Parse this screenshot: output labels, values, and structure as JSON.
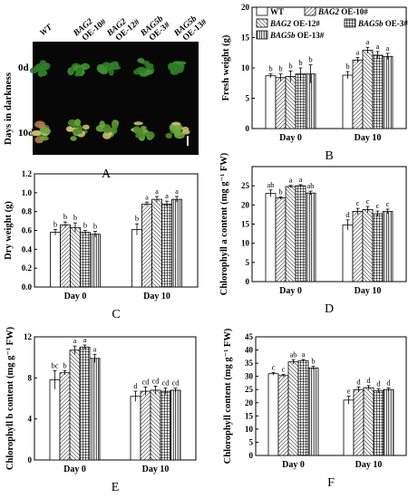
{
  "photo_panel": {
    "label": "A",
    "row_axis_label": "Days in darkness",
    "row_labels": [
      "0d",
      "10d"
    ],
    "columns": [
      {
        "gene": "WT",
        "line": ""
      },
      {
        "gene": "BAG2",
        "line": "OE-10#"
      },
      {
        "gene": "BAG2",
        "line": "OE-12#"
      },
      {
        "gene": "BAG5b",
        "line": "OE-3#"
      },
      {
        "gene": "BAG5b",
        "line": "OE-13#"
      }
    ]
  },
  "legend": {
    "entries": [
      {
        "gene": "WT",
        "line": ""
      },
      {
        "gene": "BAG2",
        "line": " OE-10#"
      },
      {
        "gene": "BAG2",
        "line": " OE-12#"
      },
      {
        "gene": "BAG5b",
        "line": " OE-3#"
      },
      {
        "gene": "BAG5b",
        "line": " OE-13#"
      }
    ]
  },
  "chart_data": [
    {
      "panel": "B",
      "type": "bar",
      "ylabel": "Fresh weight (g)",
      "ylim": [
        0,
        20
      ],
      "yticks": [
        0,
        5,
        10,
        15,
        20
      ],
      "categories": [
        "Day 0",
        "Day 10"
      ],
      "series": [
        {
          "name": "WT",
          "values": [
            8.7,
            8.8
          ],
          "errors": [
            0.3,
            0.6
          ],
          "letters": [
            "b",
            "b"
          ]
        },
        {
          "name": "BAG2 OE-10#",
          "values": [
            8.4,
            11.3
          ],
          "errors": [
            0.6,
            0.4
          ],
          "letters": [
            "b",
            "a"
          ]
        },
        {
          "name": "BAG2 OE-12#",
          "values": [
            8.6,
            12.9
          ],
          "errors": [
            0.9,
            0.5
          ],
          "letters": [
            "b",
            "a"
          ]
        },
        {
          "name": "BAG5b OE-3#",
          "values": [
            9.0,
            12.1
          ],
          "errors": [
            1.0,
            0.6
          ],
          "letters": [
            "b",
            "a"
          ]
        },
        {
          "name": "BAG5b OE-13#",
          "values": [
            9.0,
            11.9
          ],
          "errors": [
            1.5,
            0.5
          ],
          "letters": [
            "b",
            "a"
          ]
        }
      ]
    },
    {
      "panel": "C",
      "type": "bar",
      "ylabel": "Dry weight (g)",
      "ylim": [
        0,
        1.2
      ],
      "yticks": [
        "0.0",
        "0.2",
        "0.4",
        "0.6",
        "0.8",
        "1.0",
        "1.2"
      ],
      "categories": [
        "Day 0",
        "Day 10"
      ],
      "series": [
        {
          "name": "WT",
          "values": [
            0.58,
            0.61
          ],
          "errors": [
            0.03,
            0.06
          ],
          "letters": [
            "b",
            "b"
          ]
        },
        {
          "name": "BAG2 OE-10#",
          "values": [
            0.66,
            0.88
          ],
          "errors": [
            0.03,
            0.02
          ],
          "letters": [
            "b",
            "a"
          ]
        },
        {
          "name": "BAG2 OE-12#",
          "values": [
            0.63,
            0.93
          ],
          "errors": [
            0.05,
            0.03
          ],
          "letters": [
            "b",
            "a"
          ]
        },
        {
          "name": "BAG5b OE-3#",
          "values": [
            0.58,
            0.88
          ],
          "errors": [
            0.02,
            0.03
          ],
          "letters": [
            "b",
            "a"
          ]
        },
        {
          "name": "BAG5b OE-13#",
          "values": [
            0.56,
            0.93
          ],
          "errors": [
            0.03,
            0.03
          ],
          "letters": [
            "b",
            "a"
          ]
        }
      ]
    },
    {
      "panel": "D",
      "type": "bar",
      "ylabel": "Chlorophyll a content (mg g⁻¹ FW)",
      "ylim": [
        0,
        30
      ],
      "yticks": [
        0,
        5,
        10,
        15,
        20,
        25
      ],
      "categories": [
        "Day 0",
        "Day 10"
      ],
      "series": [
        {
          "name": "WT",
          "values": [
            23.0,
            14.8
          ],
          "errors": [
            0.9,
            1.3
          ],
          "letters": [
            "ab",
            "d"
          ]
        },
        {
          "name": "BAG2 OE-10#",
          "values": [
            21.8,
            18.3
          ],
          "errors": [
            0.3,
            0.8
          ],
          "letters": [
            "b",
            "c"
          ]
        },
        {
          "name": "BAG2 OE-12#",
          "values": [
            24.8,
            18.8
          ],
          "errors": [
            0.3,
            0.8
          ],
          "letters": [
            "a",
            "c"
          ]
        },
        {
          "name": "BAG5b OE-3#",
          "values": [
            25.0,
            17.7
          ],
          "errors": [
            0.3,
            0.7
          ],
          "letters": [
            "a",
            "c"
          ]
        },
        {
          "name": "BAG5b OE-13#",
          "values": [
            23.1,
            18.3
          ],
          "errors": [
            0.5,
            0.6
          ],
          "letters": [
            "ab",
            "c"
          ]
        }
      ]
    },
    {
      "panel": "E",
      "type": "bar",
      "ylabel": "Chlorophyll b content (mg g⁻¹ FW)",
      "ylim": [
        0,
        12
      ],
      "yticks": [
        0,
        4,
        8,
        12
      ],
      "categories": [
        "Day 0",
        "Day 10"
      ],
      "series": [
        {
          "name": "WT",
          "values": [
            7.8,
            6.2
          ],
          "errors": [
            0.9,
            0.5
          ],
          "letters": [
            "bc",
            "d"
          ]
        },
        {
          "name": "BAG2 OE-10#",
          "values": [
            8.5,
            6.7
          ],
          "errors": [
            0.2,
            0.4
          ],
          "letters": [
            "b",
            "cd"
          ]
        },
        {
          "name": "BAG2 OE-12#",
          "values": [
            10.7,
            6.8
          ],
          "errors": [
            0.4,
            0.4
          ],
          "letters": [
            "a",
            "cd"
          ]
        },
        {
          "name": "BAG5b OE-3#",
          "values": [
            11.0,
            6.7
          ],
          "errors": [
            0.2,
            0.3
          ],
          "letters": [
            "a",
            "cd"
          ]
        },
        {
          "name": "BAG5b OE-13#",
          "values": [
            9.9,
            6.8
          ],
          "errors": [
            0.4,
            0.2
          ],
          "letters": [
            "a",
            "cd"
          ]
        }
      ]
    },
    {
      "panel": "F",
      "type": "bar",
      "ylabel": "Chlorophyll content (mg g⁻¹ FW)",
      "ylim": [
        0,
        45
      ],
      "yticks": [
        0,
        5,
        10,
        15,
        20,
        25,
        30,
        35,
        40,
        45
      ],
      "categories": [
        "Day 0",
        "Day 10"
      ],
      "series": [
        {
          "name": "WT",
          "values": [
            31.0,
            21.0
          ],
          "errors": [
            0.5,
            1.5
          ],
          "letters": [
            "c",
            "e"
          ]
        },
        {
          "name": "BAG2 OE-10#",
          "values": [
            30.3,
            25.0
          ],
          "errors": [
            0.4,
            1.0
          ],
          "letters": [
            "c",
            "d"
          ]
        },
        {
          "name": "BAG2 OE-12#",
          "values": [
            35.5,
            25.7
          ],
          "errors": [
            0.8,
            0.8
          ],
          "letters": [
            "ab",
            "d"
          ]
        },
        {
          "name": "BAG5b OE-3#",
          "values": [
            36.0,
            24.5
          ],
          "errors": [
            0.4,
            0.8
          ],
          "letters": [
            "a",
            "d"
          ]
        },
        {
          "name": "BAG5b OE-13#",
          "values": [
            33.2,
            25.0
          ],
          "errors": [
            0.6,
            0.6
          ],
          "letters": [
            "b",
            "d"
          ]
        }
      ]
    }
  ]
}
